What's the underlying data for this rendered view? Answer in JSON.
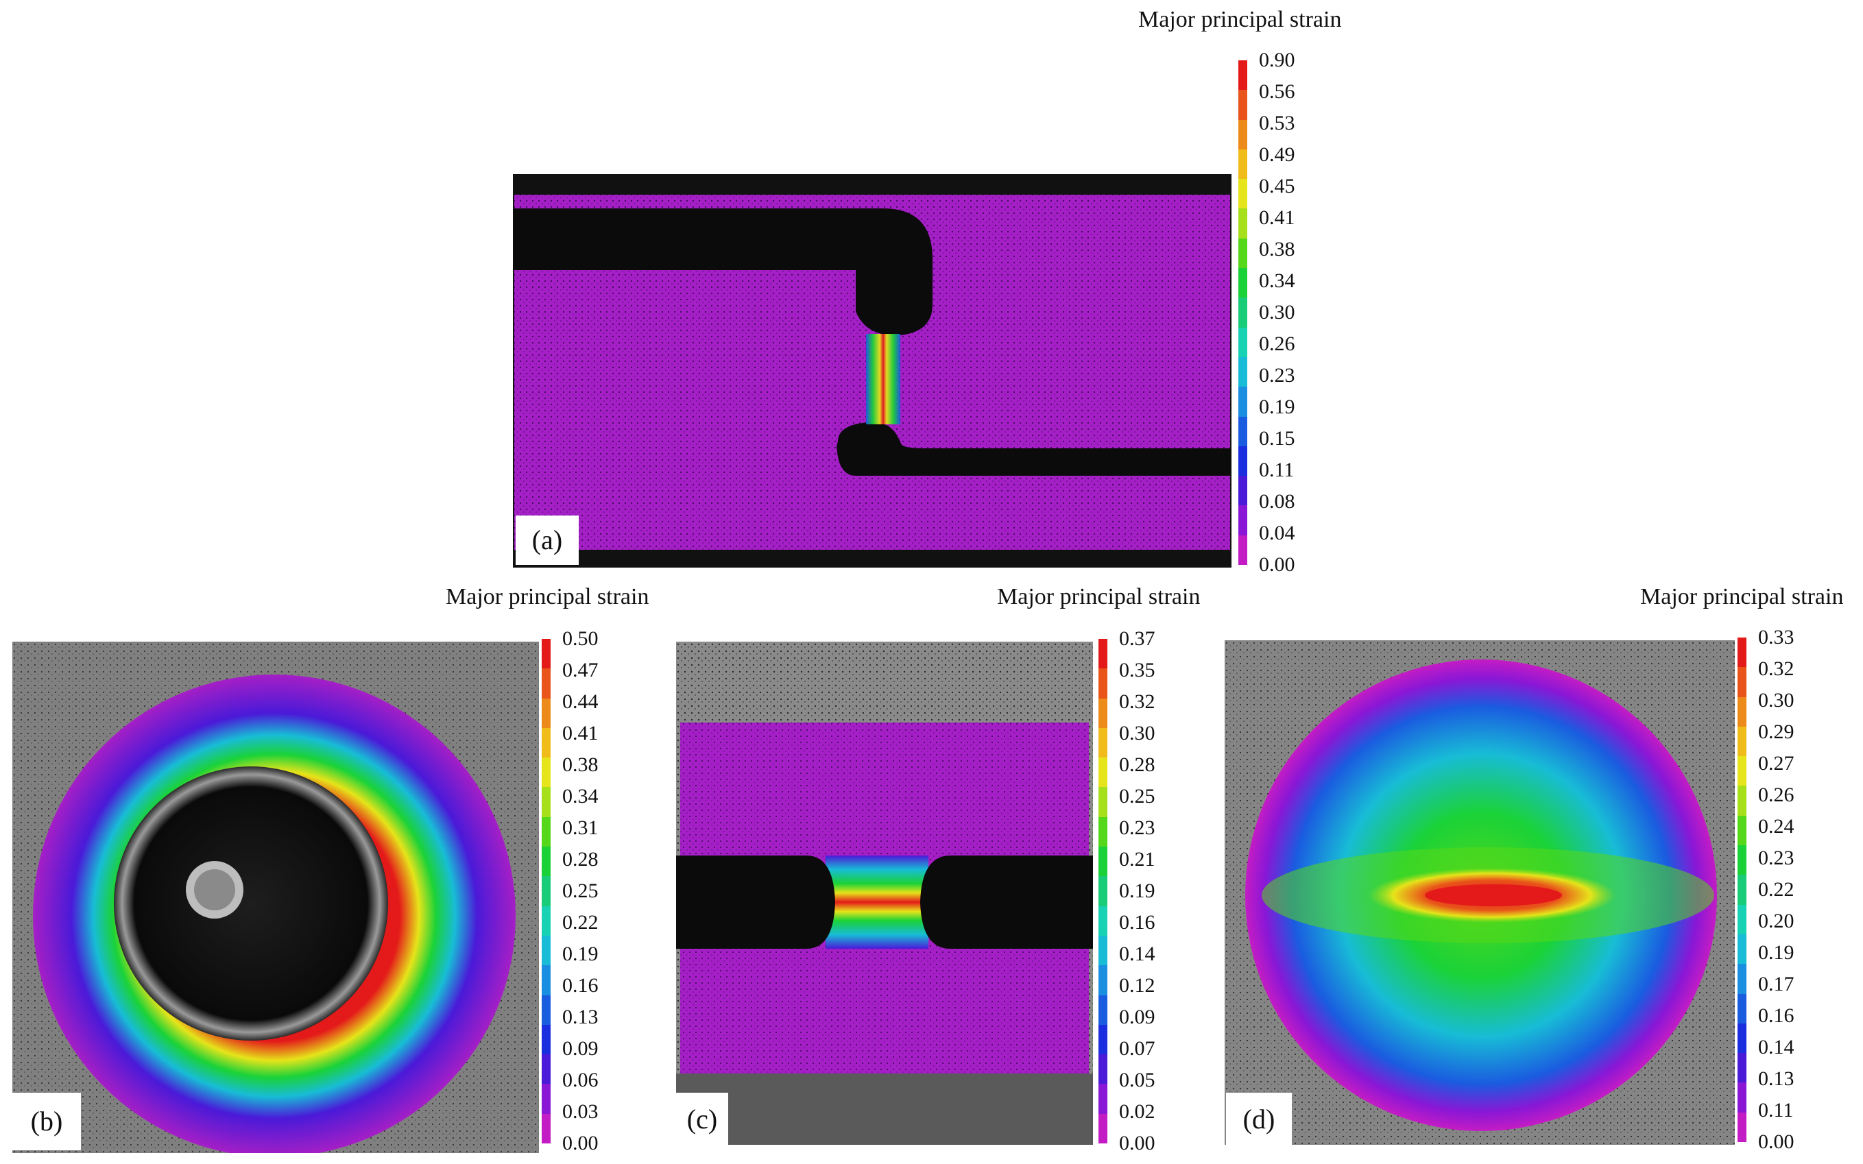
{
  "colors": {
    "scale": [
      "#c41cc4",
      "#8a17d6",
      "#4a1ad8",
      "#1a2ee0",
      "#1a5ce0",
      "#1a8ee0",
      "#18bcd6",
      "#18d2b4",
      "#18cc78",
      "#1ad238",
      "#56d81a",
      "#a6e01a",
      "#e6e41a",
      "#f0bc1a",
      "#ec8a1a",
      "#e8541a",
      "#e41a1a"
    ],
    "speckle_bg": "#7d7d7d",
    "specimen_black": "#0b0b0b"
  },
  "panels": {
    "a": {
      "label": "(a)",
      "colorbar": {
        "title": "Major principal strain",
        "ticks": [
          "0.90",
          "0.56",
          "0.53",
          "0.49",
          "0.45",
          "0.41",
          "0.38",
          "0.34",
          "0.30",
          "0.26",
          "0.23",
          "0.19",
          "0.15",
          "0.11",
          "0.08",
          "0.04",
          "0.00"
        ]
      }
    },
    "b": {
      "label": "(b)",
      "colorbar": {
        "title": "Major principal strain",
        "ticks": [
          "0.50",
          "0.47",
          "0.44",
          "0.41",
          "0.38",
          "0.34",
          "0.31",
          "0.28",
          "0.25",
          "0.22",
          "0.19",
          "0.16",
          "0.13",
          "0.09",
          "0.06",
          "0.03",
          "0.00"
        ]
      }
    },
    "c": {
      "label": "(c)",
      "colorbar": {
        "title": "Major principal strain",
        "ticks": [
          "0.37",
          "0.35",
          "0.32",
          "0.30",
          "0.28",
          "0.25",
          "0.23",
          "0.21",
          "0.19",
          "0.16",
          "0.14",
          "0.12",
          "0.09",
          "0.07",
          "0.05",
          "0.02",
          "0.00"
        ]
      }
    },
    "d": {
      "label": "(d)",
      "colorbar": {
        "title": "Major principal strain",
        "ticks": [
          "0.33",
          "0.32",
          "0.30",
          "0.29",
          "0.27",
          "0.26",
          "0.24",
          "0.23",
          "0.22",
          "0.20",
          "0.19",
          "0.17",
          "0.16",
          "0.14",
          "0.13",
          "0.11",
          "0.00"
        ]
      }
    }
  }
}
